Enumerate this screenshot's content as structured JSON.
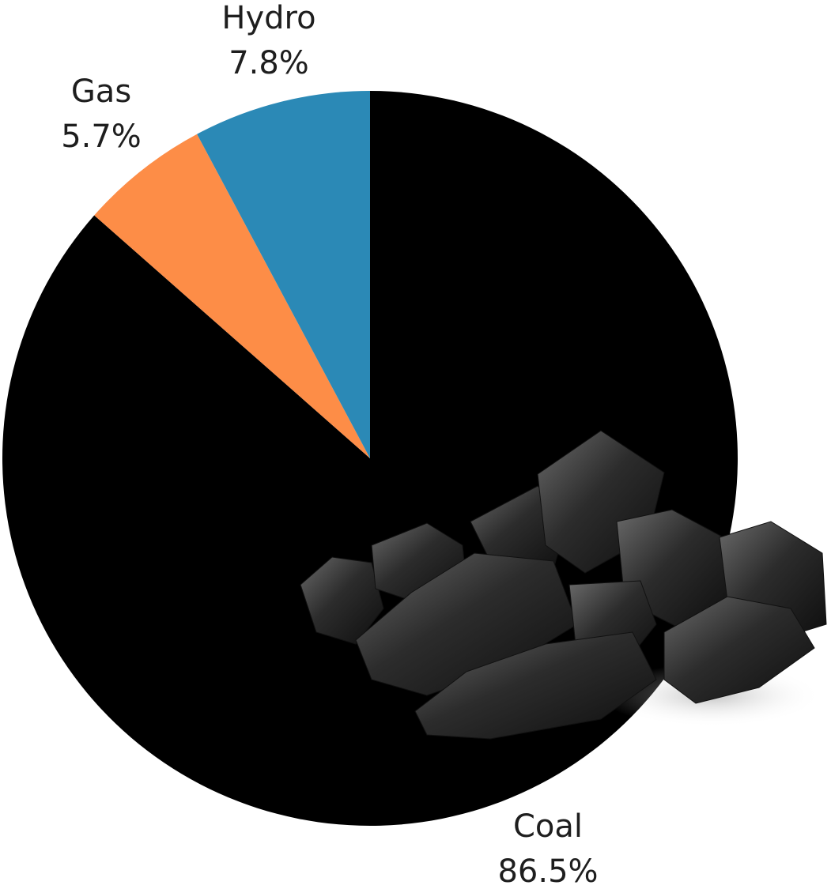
{
  "chart_data": {
    "type": "pie",
    "categories": [
      "Coal",
      "Gas",
      "Hydro"
    ],
    "values": [
      86.5,
      5.7,
      7.8
    ],
    "value_labels": [
      "86.5%",
      "5.7%",
      "7.8%"
    ],
    "colors": [
      "#000000",
      "#fd8d47",
      "#2b89b6"
    ],
    "start_angle": 90,
    "direction": "clockwise"
  }
}
